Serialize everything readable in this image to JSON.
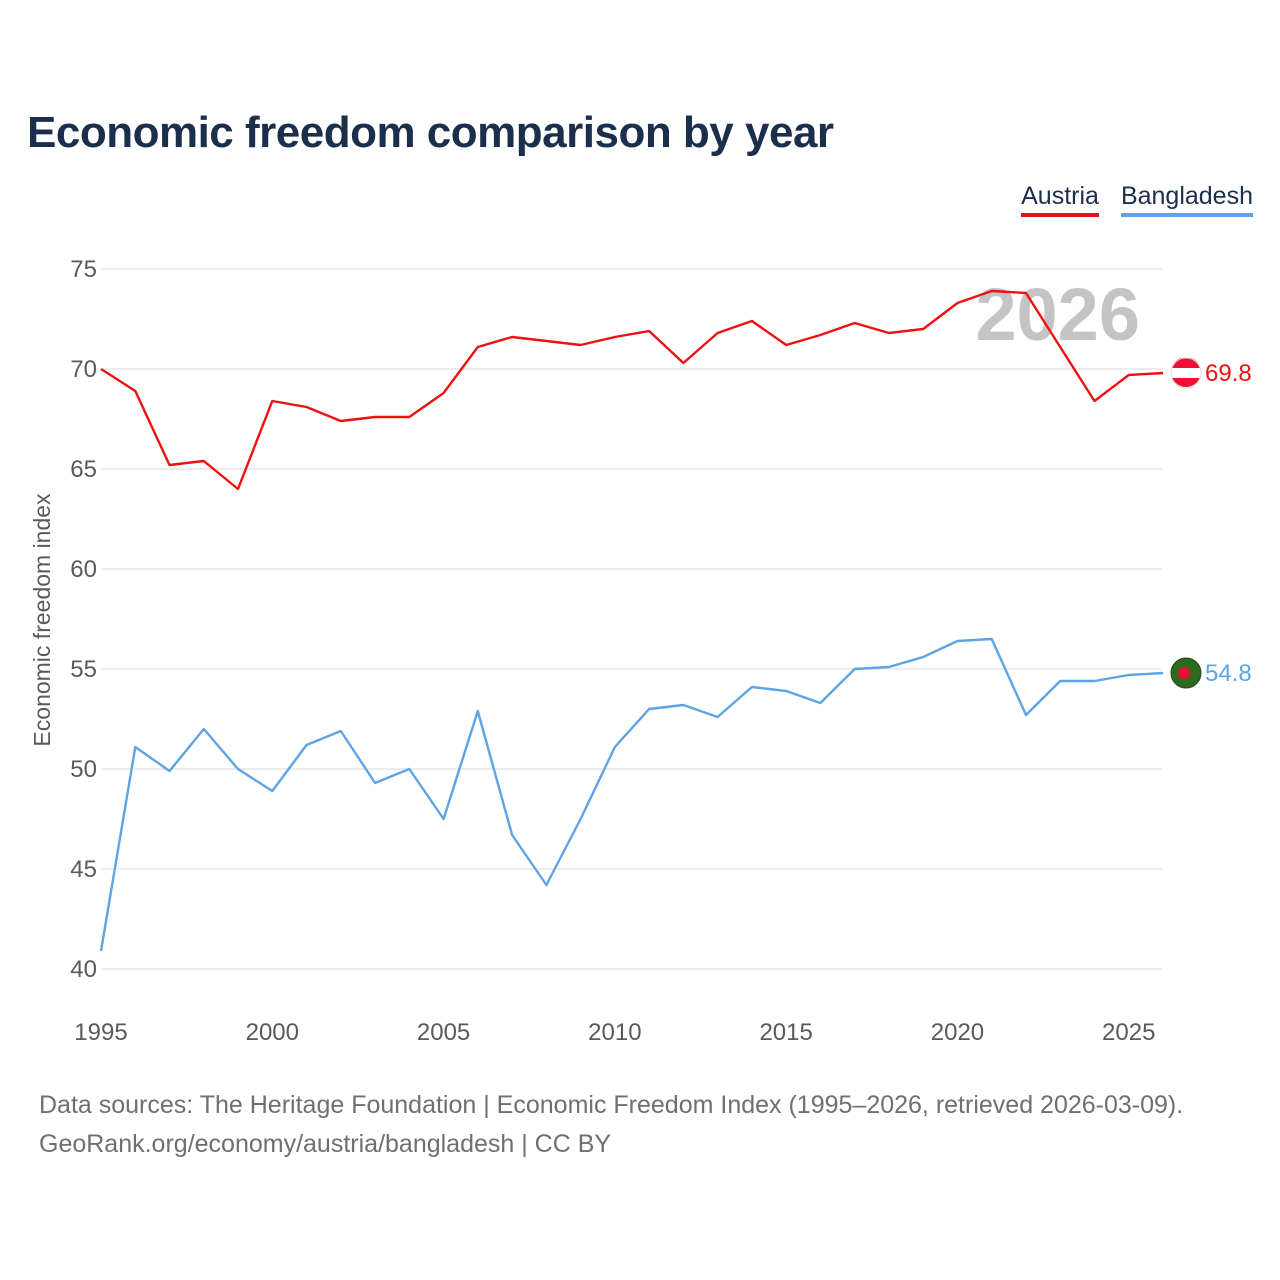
{
  "title": "Economic freedom comparison by year",
  "legend": [
    {
      "name": "Austria",
      "color": "#ee1111"
    },
    {
      "name": "Bangladesh",
      "color": "#5ea4e4"
    }
  ],
  "year_watermark": "2026",
  "footer": {
    "line1": "Data sources: The Heritage Foundation | Economic Freedom Index (1995–2026, retrieved 2026-03-09).",
    "line2": "GeoRank.org/economy/austria/bangladesh | CC BY"
  },
  "chart_data": {
    "type": "line",
    "title": "Economic freedom comparison by year",
    "xlabel": "",
    "ylabel": "Economic freedom index",
    "xlim": [
      1995,
      2026
    ],
    "ylim": [
      40,
      75
    ],
    "yticks": [
      40,
      45,
      50,
      55,
      60,
      65,
      70,
      75
    ],
    "xticks": [
      1995,
      2000,
      2005,
      2010,
      2015,
      2020,
      2025
    ],
    "grid": true,
    "x": [
      1995,
      1996,
      1997,
      1998,
      1999,
      2000,
      2001,
      2002,
      2003,
      2004,
      2005,
      2006,
      2007,
      2008,
      2009,
      2010,
      2011,
      2012,
      2013,
      2014,
      2015,
      2016,
      2017,
      2018,
      2019,
      2020,
      2021,
      2022,
      2023,
      2024,
      2025,
      2026
    ],
    "series": [
      {
        "name": "Austria",
        "color": "#ee1111",
        "end_label": "69.8",
        "flag": "austria",
        "values": [
          70.0,
          68.9,
          65.2,
          65.4,
          64.0,
          68.4,
          68.1,
          67.4,
          67.6,
          67.6,
          68.8,
          71.1,
          71.6,
          71.4,
          71.2,
          71.6,
          71.9,
          70.3,
          71.8,
          72.4,
          71.2,
          71.7,
          72.3,
          71.8,
          72.0,
          73.3,
          73.9,
          73.8,
          71.1,
          68.4,
          69.7,
          69.8
        ]
      },
      {
        "name": "Bangladesh",
        "color": "#5ea4e4",
        "end_label": "54.8",
        "flag": "bangladesh",
        "values": [
          40.9,
          51.1,
          49.9,
          52.0,
          50.0,
          48.9,
          51.2,
          51.9,
          49.3,
          50.0,
          47.5,
          52.9,
          46.7,
          44.2,
          47.5,
          51.1,
          53.0,
          53.2,
          52.6,
          54.1,
          53.9,
          53.3,
          55.0,
          55.1,
          55.6,
          56.4,
          56.5,
          52.7,
          54.4,
          54.4,
          54.7,
          54.8
        ]
      }
    ]
  }
}
